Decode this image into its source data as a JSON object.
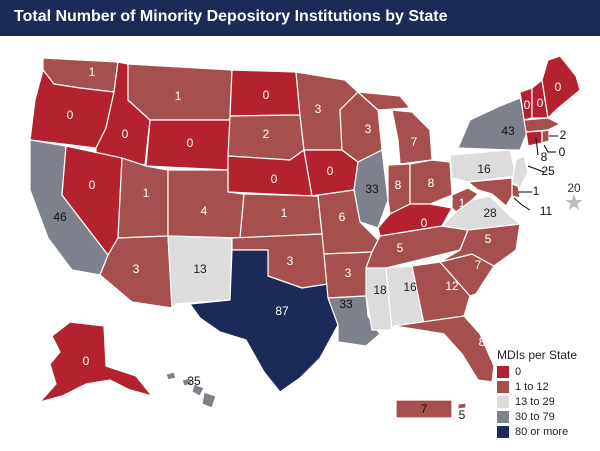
{
  "title": "Total Number of Minority Depository Institutions by State",
  "colors": {
    "0": "#b3222e",
    "1 to 12": "#a64f4f",
    "13 to 29": "#dcdcdc",
    "30 to 79": "#7d818b",
    "80 or more": "#1b2a57",
    "header": "#1b2a57"
  },
  "legend": {
    "title": "MDIs per State",
    "items": [
      {
        "label": "0",
        "color": "#b3222e"
      },
      {
        "label": "1 to 12",
        "color": "#a64f4f"
      },
      {
        "label": "13 to 29",
        "color": "#dcdcdc"
      },
      {
        "label": "30 to 79",
        "color": "#7d818b"
      },
      {
        "label": "80 or more",
        "color": "#1b2a57"
      }
    ]
  },
  "states": {
    "WA": "1",
    "OR": "0",
    "ID": "0",
    "MT": "1",
    "WY": "0",
    "ND": "0",
    "SD": "2",
    "NE": "0",
    "MN": "3",
    "IA": "0",
    "WI": "3",
    "MI": "7",
    "IL": "33",
    "IN": "8",
    "OH": "8",
    "KY": "0",
    "CA": "46",
    "NV": "0",
    "UT": "1",
    "CO": "4",
    "AZ": "3",
    "NM": "13",
    "KS": "1",
    "OK": "3",
    "TX": "87",
    "MO": "6",
    "AR": "3",
    "LA": "33",
    "MS": "18",
    "AL": "16",
    "TN": "5",
    "GA": "12",
    "FL": "8",
    "SC": "7",
    "NC": "5",
    "VA": "28",
    "WV": "1",
    "PA": "16",
    "NY": "43",
    "VT": "0",
    "NH": "0",
    "ME": "0",
    "MA": "8",
    "CT": "0",
    "RI": "2",
    "NJ": "25",
    "DE": "1",
    "MD": "11",
    "DC": "20",
    "AK": "0",
    "HI": "35",
    "PR": "7",
    "VI": "5"
  }
}
